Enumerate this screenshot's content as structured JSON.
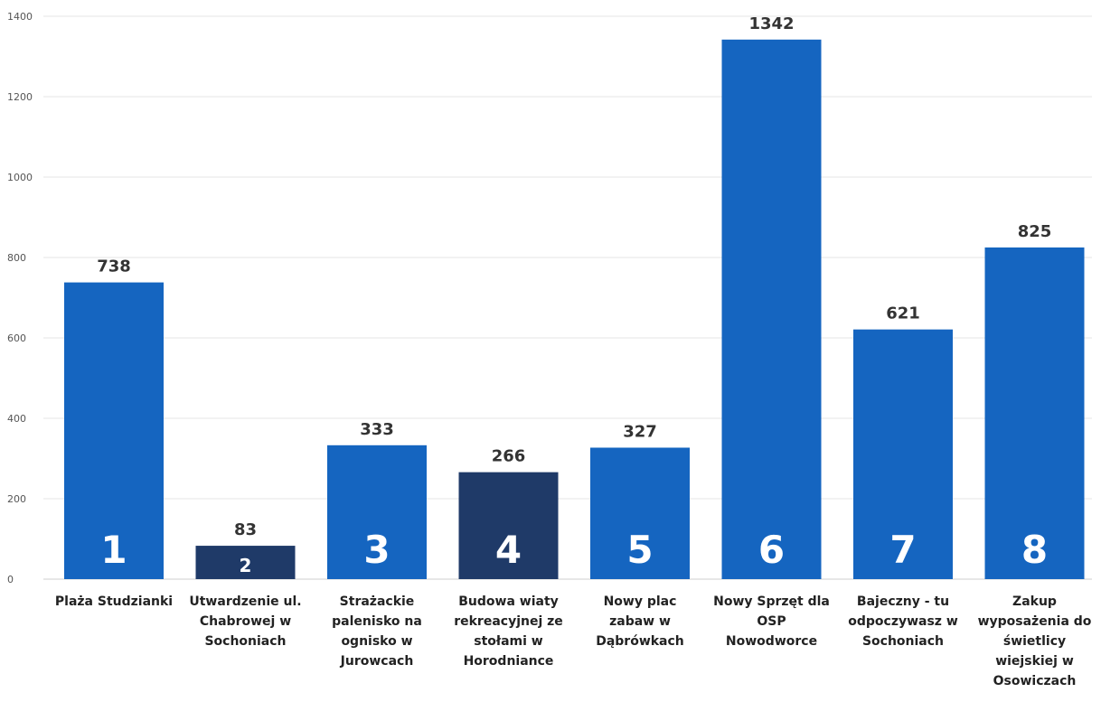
{
  "chart_data": {
    "type": "bar",
    "categories": [
      "Plaża Studzianki",
      "Utwardzenie ul. Chabrowej w Sochoniach",
      "Strażackie palenisko na ognisko w Jurowcach",
      "Budowa wiaty rekreacyjnej ze stołami w Horodniance",
      "Nowy plac zabaw w Dąbrówkach",
      "Nowy Sprzęt dla OSP Nowodworce",
      "Bajeczny - tu odpoczywasz w Sochoniach",
      "Zakup wyposażenia do świetlicy wiejskiej w Osowiczach"
    ],
    "category_lines": [
      [
        "Plaża Studzianki"
      ],
      [
        "Utwardzenie ul.",
        "Chabrowej w",
        "Sochoniach"
      ],
      [
        "Strażackie",
        "palenisko na",
        "ognisko w",
        "Jurowcach"
      ],
      [
        "Budowa wiaty",
        "rekreacyjnej ze",
        "stołami w",
        "Horodniance"
      ],
      [
        "Nowy plac",
        "zabaw w",
        "Dąbrówkach"
      ],
      [
        "Nowy Sprzęt dla",
        "OSP",
        "Nowodworce"
      ],
      [
        "Bajeczny - tu",
        "odpoczywasz w",
        "Sochoniach"
      ],
      [
        "Zakup",
        "wyposażenia do",
        "świetlicy",
        "wiejskiej w",
        "Osowiczach"
      ]
    ],
    "values": [
      738,
      83,
      333,
      266,
      327,
      1342,
      621,
      825
    ],
    "bar_numbers": [
      "1",
      "2",
      "3",
      "4",
      "5",
      "6",
      "7",
      "8"
    ],
    "bar_colors": [
      "#1565C0",
      "#1F3A68",
      "#1565C0",
      "#1F3A68",
      "#1565C0",
      "#1565C0",
      "#1565C0",
      "#1565C0"
    ],
    "ylim": [
      0,
      1400
    ],
    "yticks": [
      0,
      200,
      400,
      600,
      800,
      1000,
      1200,
      1400
    ],
    "title": "",
    "xlabel": "",
    "ylabel": "",
    "grid": true,
    "data_labels": true
  }
}
